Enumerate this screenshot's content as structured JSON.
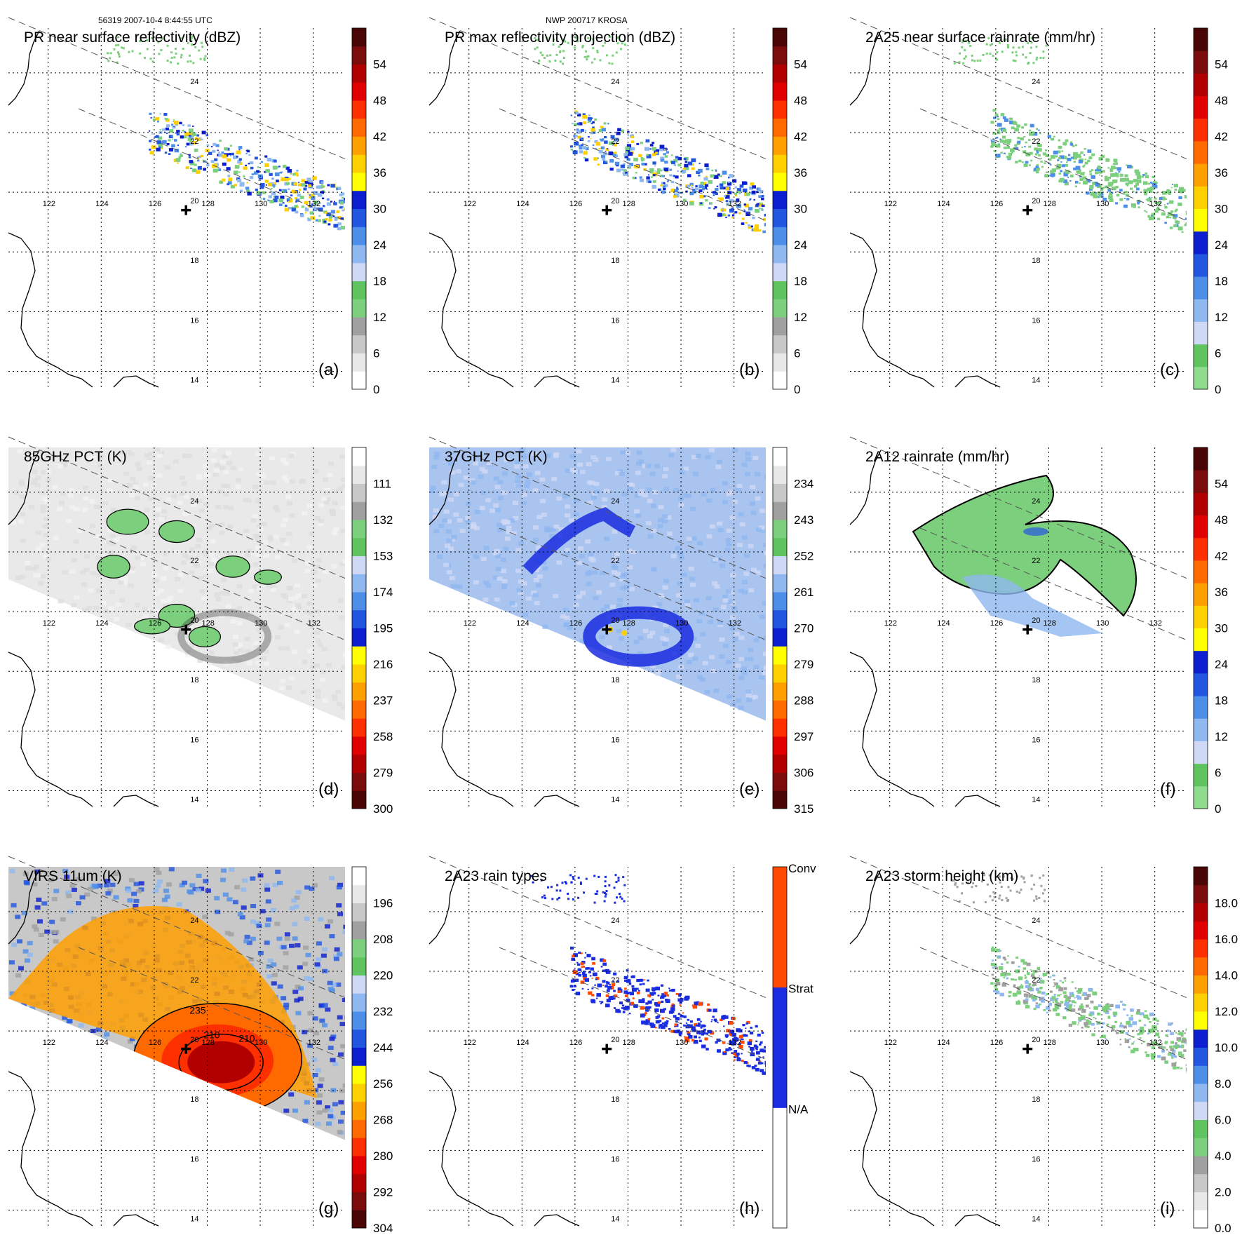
{
  "header": {
    "orbit_time": "56319 2007-10-4 8:44:55 UTC",
    "storm": "NWP 200717 KROSA"
  },
  "map": {
    "lon_ticks": [
      "122",
      "124",
      "126",
      "128",
      "130",
      "132"
    ],
    "lat_ticks": [
      "24",
      "22",
      "20",
      "18",
      "16",
      "14"
    ],
    "lon_range": [
      120.5,
      133.2
    ],
    "lat_range": [
      13.4,
      25.5
    ],
    "storm_center": {
      "lon": 127.2,
      "lat": 19.4
    },
    "swath_slope_desc": "diagonal swath, upper-left to lower-right"
  },
  "colors": {
    "refl_scale": [
      "#ffffff",
      "#e8e8e8",
      "#c8c8c8",
      "#a0a0a0",
      "#7ccf7c",
      "#5fc45f",
      "#cfd8f5",
      "#8fb8f0",
      "#4d8fe8",
      "#2255e0",
      "#0b1fd0",
      "#ffff00",
      "#ffd000",
      "#ff9f00",
      "#ff6a00",
      "#ff3000",
      "#e00000",
      "#b00000",
      "#7a0c0c",
      "#4a0505"
    ],
    "rain_scale": [
      "#8fdc8f",
      "#5fc45f",
      "#cfd8f5",
      "#8fb8f0",
      "#4d8fe8",
      "#2255e0",
      "#0b1fd0",
      "#ffff00",
      "#ffd000",
      "#ff9f00",
      "#ff6a00",
      "#ff3000",
      "#e00000",
      "#b00000",
      "#7a0c0c",
      "#4a0505"
    ],
    "pct_scale": [
      "#4a0505",
      "#7a0c0c",
      "#b00000",
      "#e00000",
      "#ff3000",
      "#ff6a00",
      "#ff9f00",
      "#ffd000",
      "#ffff00",
      "#0b1fd0",
      "#2255e0",
      "#4d8fe8",
      "#8fb8f0",
      "#cfd8f5",
      "#5fc45f",
      "#7ccf7c",
      "#a0a0a0",
      "#c8c8c8",
      "#e8e8e8",
      "#ffffff"
    ],
    "rain_type_scale": [
      "#ffffff",
      "#ffffff",
      "#1a2de0",
      "#1a2de0",
      "#ff4a00",
      "#ff4a00"
    ],
    "height_scale": [
      "#ffffff",
      "#e8e8e8",
      "#c8c8c8",
      "#a0a0a0",
      "#7ccf7c",
      "#5fc45f",
      "#cfd8f5",
      "#8fb8f0",
      "#4d8fe8",
      "#2255e0",
      "#0b1fd0",
      "#ffff00",
      "#ffd000",
      "#ff9f00",
      "#ff6a00",
      "#ff3000",
      "#e00000",
      "#b00000",
      "#7a0c0c",
      "#4a0505"
    ]
  },
  "chart_data": [
    {
      "type": "heatmap",
      "panel_label": "(a)",
      "title": "PR near surface reflectivity (dBZ)",
      "colorbar": {
        "ticks": [
          "0",
          "6",
          "12",
          "18",
          "24",
          "30",
          "36",
          "42",
          "48",
          "54"
        ],
        "scale": "refl_scale",
        "range": [
          0,
          60
        ]
      },
      "field": "pr_narrow"
    },
    {
      "type": "heatmap",
      "panel_label": "(b)",
      "title": "PR max reflectivity projection (dBZ)",
      "colorbar": {
        "ticks": [
          "0",
          "6",
          "12",
          "18",
          "24",
          "30",
          "36",
          "42",
          "48",
          "54"
        ],
        "scale": "refl_scale",
        "range": [
          0,
          60
        ]
      },
      "field": "pr_narrow"
    },
    {
      "type": "heatmap",
      "panel_label": "(c)",
      "title": "2A25 near surface rainrate (mm/hr)",
      "colorbar": {
        "ticks": [
          "0",
          "6",
          "12",
          "18",
          "24",
          "30",
          "36",
          "42",
          "48",
          "54"
        ],
        "scale": "rain_scale",
        "range": [
          0,
          60
        ]
      },
      "field": "pr_narrow"
    },
    {
      "type": "heatmap",
      "panel_label": "(d)",
      "title": "85GHz PCT (K)",
      "colorbar": {
        "ticks": [
          "300",
          "279",
          "258",
          "237",
          "216",
          "195",
          "174",
          "153",
          "132",
          "111"
        ],
        "scale": "pct_scale",
        "range": [
          300,
          90
        ]
      },
      "field": "tmi_wide"
    },
    {
      "type": "heatmap",
      "panel_label": "(e)",
      "title": "37GHz PCT (K)",
      "colorbar": {
        "ticks": [
          "315",
          "306",
          "297",
          "288",
          "279",
          "270",
          "261",
          "252",
          "243",
          "234"
        ],
        "scale": "pct_scale",
        "range": [
          315,
          225
        ]
      },
      "field": "tmi_wide"
    },
    {
      "type": "heatmap",
      "panel_label": "(f)",
      "title": "2A12 rainrate (mm/hr)",
      "colorbar": {
        "ticks": [
          "0",
          "6",
          "12",
          "18",
          "24",
          "30",
          "36",
          "42",
          "48",
          "54"
        ],
        "scale": "rain_scale",
        "range": [
          0,
          60
        ]
      },
      "field": "tmi_wide"
    },
    {
      "type": "heatmap",
      "panel_label": "(g)",
      "title": "VIRS 11um (K)",
      "colorbar": {
        "ticks": [
          "304",
          "292",
          "280",
          "268",
          "256",
          "244",
          "232",
          "220",
          "208",
          "196"
        ],
        "scale": "pct_scale",
        "range": [
          304,
          184
        ]
      },
      "field": "virs_wide",
      "contour_labels": [
        "235",
        "210",
        "210"
      ]
    },
    {
      "type": "heatmap",
      "panel_label": "(h)",
      "title": "2A23 rain types",
      "colorbar": {
        "ticks": [
          "N/A",
          "Strat",
          "Conv"
        ],
        "scale": "rain_type_scale",
        "categorical": true
      },
      "field": "pr_narrow"
    },
    {
      "type": "heatmap",
      "panel_label": "(i)",
      "title": "2A23 storm height (km)",
      "colorbar": {
        "ticks": [
          "0.0",
          "2.0",
          "4.0",
          "6.0",
          "8.0",
          "10.0",
          "12.0",
          "14.0",
          "16.0",
          "18.0"
        ],
        "scale": "height_scale",
        "range": [
          0,
          20
        ]
      },
      "field": "pr_narrow"
    }
  ]
}
